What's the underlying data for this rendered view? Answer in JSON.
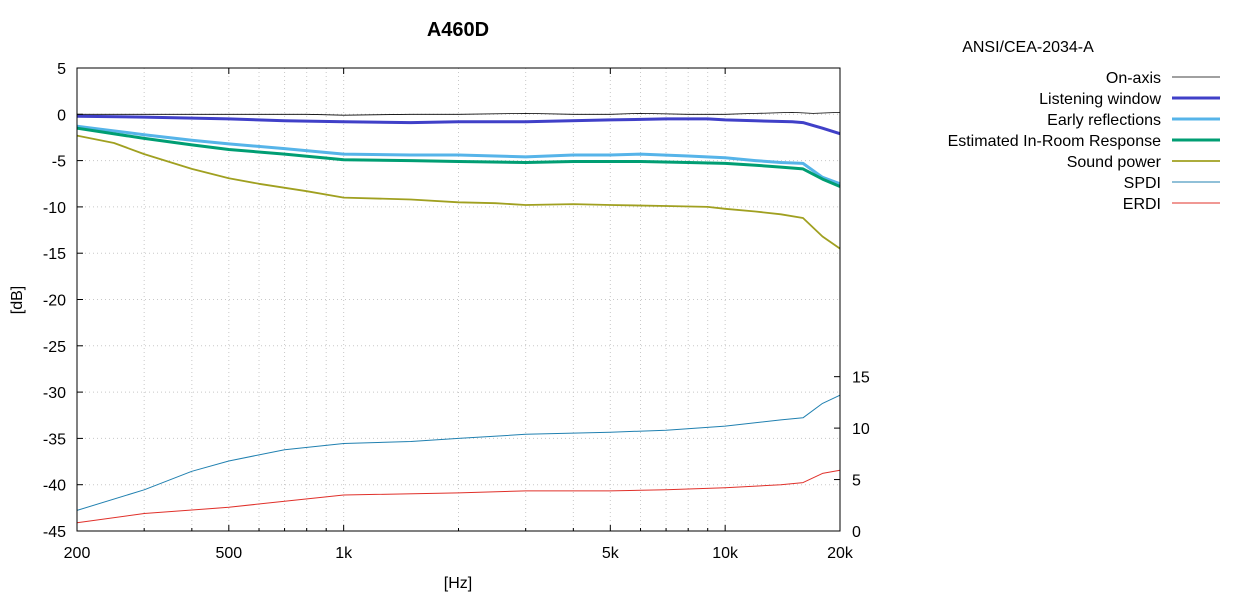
{
  "chart_data": {
    "type": "line",
    "title": "A460D",
    "legend_title": "ANSI/CEA-2034-A",
    "xlabel": "[Hz]",
    "ylabel": "[dB]",
    "x_scale": "log",
    "xlim": [
      200,
      20000
    ],
    "ylim": [
      -45,
      5
    ],
    "y2lim": [
      0,
      45
    ],
    "grid": true,
    "legend_placement": "right",
    "x_ticks": [
      {
        "value": 200,
        "label": "200"
      },
      {
        "value": 500,
        "label": "500"
      },
      {
        "value": 1000,
        "label": "1k"
      },
      {
        "value": 5000,
        "label": "5k"
      },
      {
        "value": 10000,
        "label": "10k"
      },
      {
        "value": 20000,
        "label": "20k"
      }
    ],
    "x_minor_grid": [
      300,
      400,
      600,
      700,
      800,
      900,
      2000,
      3000,
      4000,
      6000,
      7000,
      8000,
      9000
    ],
    "y_ticks": [
      5,
      0,
      -5,
      -10,
      -15,
      -20,
      -25,
      -30,
      -35,
      -40,
      -45
    ],
    "y2_ticks": [
      0,
      5,
      10,
      15
    ],
    "series": [
      {
        "name": "On-axis",
        "axis": "left",
        "color": "#000000",
        "width": 0.8,
        "points": [
          [
            200,
            0
          ],
          [
            400,
            0
          ],
          [
            800,
            0
          ],
          [
            1000,
            -0.1
          ],
          [
            1500,
            0
          ],
          [
            2000,
            0
          ],
          [
            3000,
            0.1
          ],
          [
            4000,
            0
          ],
          [
            5000,
            0
          ],
          [
            6000,
            0.1
          ],
          [
            8000,
            0
          ],
          [
            10000,
            0
          ],
          [
            12000,
            0.1
          ],
          [
            15000,
            0.2
          ],
          [
            17000,
            0.1
          ],
          [
            20000,
            0.2
          ]
        ]
      },
      {
        "name": "Listening window",
        "axis": "left",
        "color": "#4040c8",
        "width": 3,
        "points": [
          [
            200,
            -0.2
          ],
          [
            300,
            -0.3
          ],
          [
            500,
            -0.5
          ],
          [
            700,
            -0.7
          ],
          [
            1000,
            -0.8
          ],
          [
            1500,
            -0.9
          ],
          [
            2000,
            -0.8
          ],
          [
            3000,
            -0.8
          ],
          [
            5000,
            -0.6
          ],
          [
            7000,
            -0.5
          ],
          [
            9000,
            -0.5
          ],
          [
            10000,
            -0.6
          ],
          [
            12000,
            -0.7
          ],
          [
            15000,
            -0.8
          ],
          [
            16000,
            -0.9
          ],
          [
            18000,
            -1.5
          ],
          [
            20000,
            -2.1
          ]
        ]
      },
      {
        "name": "Early reflections",
        "axis": "left",
        "color": "#56b4e9",
        "width": 3,
        "points": [
          [
            200,
            -1.3
          ],
          [
            300,
            -2.2
          ],
          [
            400,
            -2.8
          ],
          [
            500,
            -3.2
          ],
          [
            700,
            -3.7
          ],
          [
            1000,
            -4.3
          ],
          [
            1500,
            -4.4
          ],
          [
            2000,
            -4.4
          ],
          [
            3000,
            -4.6
          ],
          [
            4000,
            -4.4
          ],
          [
            5000,
            -4.4
          ],
          [
            6000,
            -4.3
          ],
          [
            8000,
            -4.5
          ],
          [
            10000,
            -4.7
          ],
          [
            12000,
            -5.0
          ],
          [
            14000,
            -5.2
          ],
          [
            16000,
            -5.3
          ],
          [
            18000,
            -6.8
          ],
          [
            20000,
            -7.5
          ]
        ]
      },
      {
        "name": "Estimated In-Room Response",
        "axis": "left",
        "color": "#009e73",
        "width": 3,
        "points": [
          [
            200,
            -1.5
          ],
          [
            300,
            -2.6
          ],
          [
            400,
            -3.3
          ],
          [
            500,
            -3.8
          ],
          [
            700,
            -4.3
          ],
          [
            1000,
            -4.9
          ],
          [
            1500,
            -5.0
          ],
          [
            2000,
            -5.1
          ],
          [
            3000,
            -5.2
          ],
          [
            4000,
            -5.1
          ],
          [
            5000,
            -5.1
          ],
          [
            6000,
            -5.1
          ],
          [
            8000,
            -5.2
          ],
          [
            10000,
            -5.3
          ],
          [
            12000,
            -5.5
          ],
          [
            14000,
            -5.7
          ],
          [
            16000,
            -5.9
          ],
          [
            18000,
            -7.0
          ],
          [
            20000,
            -7.8
          ]
        ]
      },
      {
        "name": "Sound power",
        "axis": "left",
        "color": "#a0a020",
        "width": 1.8,
        "points": [
          [
            200,
            -2.3
          ],
          [
            250,
            -3.1
          ],
          [
            300,
            -4.3
          ],
          [
            400,
            -5.9
          ],
          [
            500,
            -6.9
          ],
          [
            600,
            -7.5
          ],
          [
            800,
            -8.3
          ],
          [
            1000,
            -9.0
          ],
          [
            1500,
            -9.2
          ],
          [
            2000,
            -9.5
          ],
          [
            2500,
            -9.6
          ],
          [
            3000,
            -9.8
          ],
          [
            4000,
            -9.7
          ],
          [
            5000,
            -9.8
          ],
          [
            7000,
            -9.9
          ],
          [
            9000,
            -10.0
          ],
          [
            10000,
            -10.2
          ],
          [
            12000,
            -10.5
          ],
          [
            14000,
            -10.8
          ],
          [
            16000,
            -11.2
          ],
          [
            18000,
            -13.2
          ],
          [
            20000,
            -14.5
          ]
        ]
      },
      {
        "name": "SPDI",
        "axis": "right",
        "color": "#2080b0",
        "width": 1,
        "points": [
          [
            200,
            2.0
          ],
          [
            300,
            4.0
          ],
          [
            400,
            5.8
          ],
          [
            500,
            6.8
          ],
          [
            700,
            7.9
          ],
          [
            1000,
            8.5
          ],
          [
            1500,
            8.7
          ],
          [
            2000,
            9.0
          ],
          [
            3000,
            9.4
          ],
          [
            5000,
            9.6
          ],
          [
            7000,
            9.8
          ],
          [
            10000,
            10.2
          ],
          [
            14000,
            10.8
          ],
          [
            16000,
            11.0
          ],
          [
            18000,
            12.4
          ],
          [
            20000,
            13.2
          ]
        ]
      },
      {
        "name": "ERDI",
        "axis": "right",
        "color": "#e0302a",
        "width": 1,
        "points": [
          [
            200,
            0.8
          ],
          [
            300,
            1.7
          ],
          [
            500,
            2.3
          ],
          [
            700,
            2.9
          ],
          [
            1000,
            3.5
          ],
          [
            2000,
            3.7
          ],
          [
            3000,
            3.9
          ],
          [
            5000,
            3.9
          ],
          [
            7000,
            4.0
          ],
          [
            10000,
            4.2
          ],
          [
            14000,
            4.5
          ],
          [
            16000,
            4.7
          ],
          [
            18000,
            5.6
          ],
          [
            20000,
            5.9
          ]
        ]
      }
    ]
  }
}
